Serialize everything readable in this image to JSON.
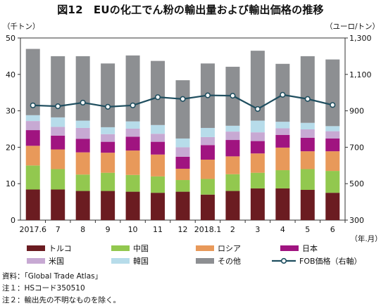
{
  "title": "図12　EUの化工でん粉の輸出量および輸出価格の推移",
  "chart_data": {
    "type": "bar",
    "categories": [
      "2017.6",
      "7",
      "8",
      "9",
      "10",
      "11",
      "12",
      "2018.1",
      "2",
      "3",
      "4",
      "5",
      "6"
    ],
    "left_axis": {
      "unit": "（千トン）",
      "ylim": [
        0,
        50
      ],
      "ticks": [
        0,
        10,
        20,
        30,
        40,
        50
      ]
    },
    "right_axis": {
      "unit": "（ユーロ/トン）",
      "ylim": [
        300,
        1300
      ],
      "ticks": [
        "300",
        "500",
        "700",
        "900",
        "1,100",
        "1,300"
      ]
    },
    "x_unit": "（年.月）",
    "stack_series": [
      {
        "name": "トルコ",
        "color": "#6b1c21",
        "values": [
          8.4,
          8.4,
          8.0,
          8.0,
          7.8,
          7.5,
          7.8,
          7.0,
          8.0,
          8.7,
          8.7,
          8.3,
          7.5
        ]
      },
      {
        "name": "中国",
        "color": "#92c84f",
        "values": [
          6.6,
          5.6,
          4.5,
          5.0,
          4.6,
          4.5,
          3.2,
          4.3,
          4.6,
          4.3,
          5.0,
          5.7,
          6.0
        ]
      },
      {
        "name": "ロシア",
        "color": "#e8995a",
        "values": [
          5.4,
          5.4,
          6.1,
          5.5,
          6.7,
          6.0,
          3.1,
          5.3,
          4.9,
          5.3,
          6.2,
          4.9,
          5.4
        ]
      },
      {
        "name": "日本",
        "color": "#a01480",
        "values": [
          4.3,
          3.8,
          3.7,
          3.0,
          3.8,
          3.5,
          3.3,
          4.0,
          4.5,
          3.4,
          3.5,
          3.7,
          3.5
        ]
      },
      {
        "name": "米国",
        "color": "#c7a9d3",
        "values": [
          2.5,
          2.4,
          3.0,
          2.1,
          2.2,
          2.2,
          2.6,
          2.2,
          2.3,
          2.4,
          1.8,
          2.3,
          2.0
        ]
      },
      {
        "name": "韓国",
        "color": "#b7dcea",
        "values": [
          1.6,
          2.6,
          2.0,
          1.9,
          2.0,
          2.4,
          2.4,
          2.5,
          1.6,
          3.2,
          1.8,
          1.8,
          1.4
        ]
      },
      {
        "name": "その他",
        "color": "#8d8f92",
        "values": [
          18.2,
          16.8,
          17.7,
          17.5,
          18.1,
          17.6,
          16.0,
          17.7,
          16.2,
          19.2,
          15.9,
          18.3,
          18.3
        ]
      }
    ],
    "line_series": {
      "name": "FOB価格（右軸）",
      "color": "#1f4e5f",
      "axis": "right",
      "values": [
        930,
        925,
        945,
        922,
        930,
        975,
        965,
        985,
        983,
        910,
        988,
        965,
        932
      ]
    },
    "legend_position": "bottom",
    "grid": false
  },
  "notes": [
    "資料：「Global Trade Atlas」",
    "注１：HSコード350510",
    "注２：輸出先の不明なものを除く。"
  ]
}
